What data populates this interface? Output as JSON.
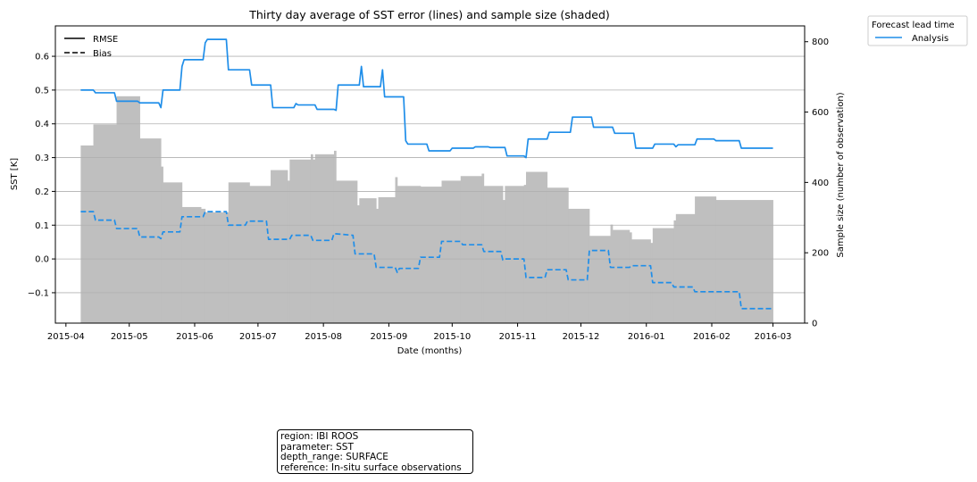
{
  "chart_data": {
    "type": "line",
    "title": "Thirty day average of SST error (lines) and sample size (shaded)",
    "xlabel": "Date (months)",
    "ylabel": "SST [K]",
    "ylabel_right": "Sample size (number of observation)",
    "xlim": [
      "2015-03-27",
      "2016-03-16"
    ],
    "ylim": [
      -0.19,
      0.69
    ],
    "ylim_right": [
      0,
      845
    ],
    "x_tick_labels": [
      "2015-04",
      "2015-05",
      "2015-06",
      "2015-07",
      "2015-08",
      "2015-09",
      "2015-10",
      "2015-11",
      "2015-12",
      "2016-01",
      "2016-02",
      "2016-03"
    ],
    "y_tick_labels": [
      "−0.1",
      "0.0",
      "0.1",
      "0.2",
      "0.3",
      "0.4",
      "0.5",
      "0.6"
    ],
    "y_tick_values": [
      -0.1,
      0.0,
      0.1,
      0.2,
      0.3,
      0.4,
      0.5,
      0.6
    ],
    "y_right_tick_labels": [
      "0",
      "200",
      "400",
      "600",
      "800"
    ],
    "y_right_tick_values": [
      0,
      200,
      400,
      600,
      800
    ],
    "grid": "horizontal",
    "style_legend": {
      "placement": "upper-left",
      "entries": [
        {
          "label": "RMSE",
          "style": "solid"
        },
        {
          "label": "Bias",
          "style": "dashed"
        }
      ]
    },
    "lead_time_legend": {
      "title": "Forecast lead time",
      "placement": "outside-right",
      "entries": [
        {
          "label": "Analysis",
          "color": "#1f8ee9"
        }
      ]
    },
    "series": [
      {
        "name": "RMSE",
        "style": "solid",
        "color": "#1f8ee9",
        "axis": "left",
        "points": [
          [
            "2015-04-08",
            0.5
          ],
          [
            "2015-04-14",
            0.5
          ],
          [
            "2015-04-15",
            0.492
          ],
          [
            "2015-04-24",
            0.492
          ],
          [
            "2015-04-25",
            0.467
          ],
          [
            "2015-05-05",
            0.467
          ],
          [
            "2015-05-06",
            0.462
          ],
          [
            "2015-05-15",
            0.462
          ],
          [
            "2015-05-16",
            0.448
          ],
          [
            "2015-05-17",
            0.5
          ],
          [
            "2015-05-25",
            0.5
          ],
          [
            "2015-05-26",
            0.57
          ],
          [
            "2015-05-27",
            0.59
          ],
          [
            "2015-06-05",
            0.59
          ],
          [
            "2015-06-06",
            0.64
          ],
          [
            "2015-06-07",
            0.65
          ],
          [
            "2015-06-16",
            0.65
          ],
          [
            "2015-06-17",
            0.56
          ],
          [
            "2015-06-27",
            0.56
          ],
          [
            "2015-06-28",
            0.515
          ],
          [
            "2015-07-07",
            0.515
          ],
          [
            "2015-07-08",
            0.448
          ],
          [
            "2015-07-18",
            0.448
          ],
          [
            "2015-07-19",
            0.46
          ],
          [
            "2015-07-20",
            0.456
          ],
          [
            "2015-07-28",
            0.456
          ],
          [
            "2015-07-29",
            0.443
          ],
          [
            "2015-08-06",
            0.443
          ],
          [
            "2015-08-07",
            0.44
          ],
          [
            "2015-08-08",
            0.515
          ],
          [
            "2015-08-18",
            0.515
          ],
          [
            "2015-08-19",
            0.57
          ],
          [
            "2015-08-20",
            0.51
          ],
          [
            "2015-08-28",
            0.51
          ],
          [
            "2015-08-29",
            0.56
          ],
          [
            "2015-08-30",
            0.48
          ],
          [
            "2015-09-08",
            0.48
          ],
          [
            "2015-09-09",
            0.35
          ],
          [
            "2015-09-10",
            0.34
          ],
          [
            "2015-09-19",
            0.34
          ],
          [
            "2015-09-20",
            0.32
          ],
          [
            "2015-09-30",
            0.32
          ],
          [
            "2015-10-01",
            0.328
          ],
          [
            "2015-10-11",
            0.328
          ],
          [
            "2015-10-12",
            0.332
          ],
          [
            "2015-10-18",
            0.332
          ],
          [
            "2015-10-19",
            0.33
          ],
          [
            "2015-10-26",
            0.33
          ],
          [
            "2015-10-27",
            0.305
          ],
          [
            "2015-11-04",
            0.305
          ],
          [
            "2015-11-05",
            0.3
          ],
          [
            "2015-11-06",
            0.355
          ],
          [
            "2015-11-15",
            0.355
          ],
          [
            "2015-11-16",
            0.375
          ],
          [
            "2015-11-26",
            0.375
          ],
          [
            "2015-11-27",
            0.42
          ],
          [
            "2015-12-06",
            0.42
          ],
          [
            "2015-12-07",
            0.39
          ],
          [
            "2015-12-16",
            0.39
          ],
          [
            "2015-12-17",
            0.372
          ],
          [
            "2015-12-26",
            0.372
          ],
          [
            "2015-12-27",
            0.328
          ],
          [
            "2016-01-04",
            0.328
          ],
          [
            "2016-01-05",
            0.34
          ],
          [
            "2016-01-14",
            0.34
          ],
          [
            "2016-01-15",
            0.332
          ],
          [
            "2016-01-16",
            0.338
          ],
          [
            "2016-01-24",
            0.338
          ],
          [
            "2016-01-25",
            0.355
          ],
          [
            "2016-02-02",
            0.355
          ],
          [
            "2016-02-03",
            0.35
          ],
          [
            "2016-02-14",
            0.35
          ],
          [
            "2016-02-15",
            0.328
          ],
          [
            "2016-03-01",
            0.328
          ]
        ]
      },
      {
        "name": "Bias",
        "style": "dashed",
        "color": "#1f8ee9",
        "axis": "left",
        "points": [
          [
            "2015-04-08",
            0.14
          ],
          [
            "2015-04-14",
            0.14
          ],
          [
            "2015-04-15",
            0.115
          ],
          [
            "2015-04-24",
            0.115
          ],
          [
            "2015-04-25",
            0.09
          ],
          [
            "2015-05-05",
            0.09
          ],
          [
            "2015-05-06",
            0.065
          ],
          [
            "2015-05-15",
            0.065
          ],
          [
            "2015-05-16",
            0.06
          ],
          [
            "2015-05-17",
            0.08
          ],
          [
            "2015-05-25",
            0.08
          ],
          [
            "2015-05-26",
            0.125
          ],
          [
            "2015-06-05",
            0.125
          ],
          [
            "2015-06-06",
            0.14
          ],
          [
            "2015-06-16",
            0.14
          ],
          [
            "2015-06-17",
            0.1
          ],
          [
            "2015-06-25",
            0.1
          ],
          [
            "2015-06-26",
            0.112
          ],
          [
            "2015-07-05",
            0.112
          ],
          [
            "2015-07-06",
            0.058
          ],
          [
            "2015-07-16",
            0.058
          ],
          [
            "2015-07-17",
            0.07
          ],
          [
            "2015-07-26",
            0.07
          ],
          [
            "2015-07-27",
            0.055
          ],
          [
            "2015-08-05",
            0.055
          ],
          [
            "2015-08-06",
            0.075
          ],
          [
            "2015-08-15",
            0.07
          ],
          [
            "2015-08-16",
            0.015
          ],
          [
            "2015-08-25",
            0.015
          ],
          [
            "2015-08-26",
            -0.025
          ],
          [
            "2015-09-04",
            -0.025
          ],
          [
            "2015-09-05",
            -0.04
          ],
          [
            "2015-09-06",
            -0.028
          ],
          [
            "2015-09-15",
            -0.028
          ],
          [
            "2015-09-16",
            0.005
          ],
          [
            "2015-09-25",
            0.005
          ],
          [
            "2015-09-26",
            0.052
          ],
          [
            "2015-10-05",
            0.052
          ],
          [
            "2015-10-06",
            0.042
          ],
          [
            "2015-10-15",
            0.042
          ],
          [
            "2015-10-16",
            0.022
          ],
          [
            "2015-10-24",
            0.022
          ],
          [
            "2015-10-25",
            -0.003
          ],
          [
            "2015-10-26",
            0.0
          ],
          [
            "2015-11-04",
            0.0
          ],
          [
            "2015-11-05",
            -0.055
          ],
          [
            "2015-11-14",
            -0.055
          ],
          [
            "2015-11-15",
            -0.032
          ],
          [
            "2015-11-24",
            -0.032
          ],
          [
            "2015-11-25",
            -0.062
          ],
          [
            "2015-12-04",
            -0.062
          ],
          [
            "2015-12-05",
            0.025
          ],
          [
            "2015-12-14",
            0.025
          ],
          [
            "2015-12-15",
            -0.025
          ],
          [
            "2015-12-24",
            -0.025
          ],
          [
            "2015-12-25",
            -0.02
          ],
          [
            "2016-01-03",
            -0.02
          ],
          [
            "2016-01-04",
            -0.07
          ],
          [
            "2016-01-13",
            -0.07
          ],
          [
            "2016-01-14",
            -0.083
          ],
          [
            "2016-01-23",
            -0.083
          ],
          [
            "2016-01-24",
            -0.097
          ],
          [
            "2016-02-14",
            -0.097
          ],
          [
            "2016-02-15",
            -0.147
          ],
          [
            "2016-03-01",
            -0.147
          ]
        ]
      }
    ],
    "sample_size": {
      "name": "Sample size",
      "color": "#bfbfbf",
      "axis": "right",
      "steps": [
        [
          "2015-04-08",
          505
        ],
        [
          "2015-04-14",
          565
        ],
        [
          "2015-04-25",
          645
        ],
        [
          "2015-05-06",
          525
        ],
        [
          "2015-05-16",
          445
        ],
        [
          "2015-05-17",
          400
        ],
        [
          "2015-05-26",
          330
        ],
        [
          "2015-06-04",
          325
        ],
        [
          "2015-06-06",
          315
        ],
        [
          "2015-06-17",
          400
        ],
        [
          "2015-06-27",
          390
        ],
        [
          "2015-07-07",
          435
        ],
        [
          "2015-07-15",
          405
        ],
        [
          "2015-07-16",
          465
        ],
        [
          "2015-07-26",
          480
        ],
        [
          "2015-07-27",
          465
        ],
        [
          "2015-07-28",
          480
        ],
        [
          "2015-08-06",
          490
        ],
        [
          "2015-08-07",
          405
        ],
        [
          "2015-08-17",
          335
        ],
        [
          "2015-08-18",
          355
        ],
        [
          "2015-08-26",
          325
        ],
        [
          "2015-08-27",
          358
        ],
        [
          "2015-09-04",
          415
        ],
        [
          "2015-09-05",
          390
        ],
        [
          "2015-09-16",
          388
        ],
        [
          "2015-09-26",
          405
        ],
        [
          "2015-10-05",
          418
        ],
        [
          "2015-10-15",
          425
        ],
        [
          "2015-10-16",
          390
        ],
        [
          "2015-10-25",
          350
        ],
        [
          "2015-10-26",
          390
        ],
        [
          "2015-11-04",
          393
        ],
        [
          "2015-11-05",
          430
        ],
        [
          "2015-11-15",
          385
        ],
        [
          "2015-11-25",
          325
        ],
        [
          "2015-12-05",
          248
        ],
        [
          "2015-12-15",
          280
        ],
        [
          "2015-12-16",
          265
        ],
        [
          "2015-12-24",
          258
        ],
        [
          "2015-12-25",
          238
        ],
        [
          "2016-01-03",
          228
        ],
        [
          "2016-01-04",
          270
        ],
        [
          "2016-01-14",
          292
        ],
        [
          "2016-01-15",
          310
        ],
        [
          "2016-01-24",
          360
        ],
        [
          "2016-02-03",
          350
        ],
        [
          "2016-03-01",
          350
        ]
      ]
    }
  },
  "info_box": {
    "lines": [
      "region: IBI ROOS",
      "parameter: SST",
      "depth_range: SURFACE",
      "reference: In-situ surface observations"
    ]
  }
}
